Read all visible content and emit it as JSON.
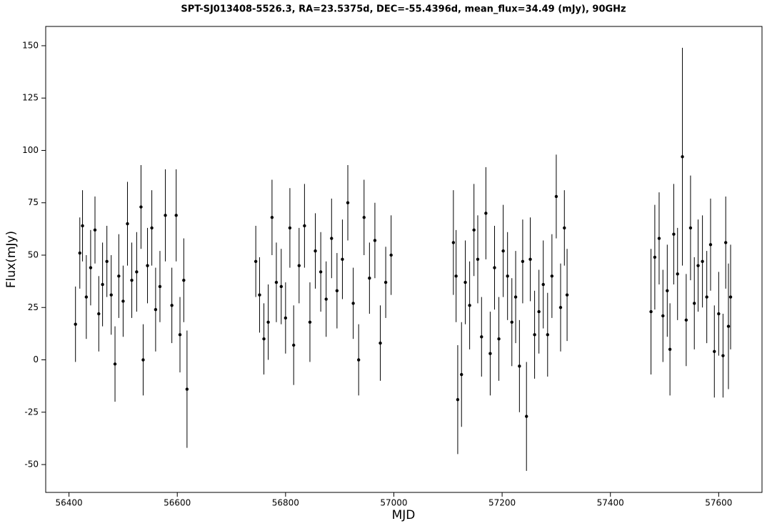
{
  "chart_data": {
    "type": "errorbar",
    "title": "SPT-SJ013408-5526.3, RA=23.5375d, DEC=-55.4396d, mean_flux=34.49 (mJy), 90GHz",
    "xlabel": "MJD",
    "ylabel": "Flux(mJy)",
    "xlim": [
      56357,
      57680
    ],
    "ylim": [
      -63.3,
      159.2
    ],
    "xticks": [
      56400,
      56600,
      56800,
      57000,
      57200,
      57400,
      57600
    ],
    "yticks": [
      -50,
      -25,
      0,
      25,
      50,
      75,
      100,
      125,
      150
    ],
    "color": "#000000",
    "x": [
      56412,
      56420,
      56425,
      56432,
      56440,
      56448,
      56455,
      56462,
      56470,
      56478,
      56485,
      56492,
      56500,
      56508,
      56516,
      56525,
      56533,
      56537,
      56545,
      56553,
      56560,
      56568,
      56578,
      56590,
      56598,
      56605,
      56612,
      56618,
      56745,
      56752,
      56760,
      56768,
      56775,
      56783,
      56792,
      56800,
      56808,
      56815,
      56825,
      56835,
      56845,
      56855,
      56865,
      56875,
      56885,
      56895,
      56905,
      56915,
      56925,
      56935,
      56945,
      56955,
      56965,
      56975,
      56985,
      56995,
      57110,
      57115,
      57118,
      57125,
      57132,
      57140,
      57148,
      57155,
      57162,
      57170,
      57178,
      57186,
      57194,
      57202,
      57210,
      57218,
      57225,
      57232,
      57238,
      57245,
      57252,
      57260,
      57268,
      57276,
      57284,
      57292,
      57300,
      57308,
      57315,
      57320,
      57475,
      57482,
      57490,
      57497,
      57505,
      57510,
      57517,
      57524,
      57533,
      57540,
      57548,
      57555,
      57562,
      57570,
      57578,
      57585,
      57592,
      57600,
      57608,
      57613,
      57618,
      57622
    ],
    "values": [
      17,
      51,
      64,
      30,
      44,
      62,
      22,
      36,
      47,
      31,
      -2,
      40,
      28,
      65,
      38,
      42,
      73,
      0,
      45,
      63,
      24,
      35,
      69,
      26,
      69,
      12,
      38,
      -14,
      47,
      31,
      10,
      18,
      68,
      37,
      35,
      20,
      63,
      7,
      45,
      64,
      18,
      52,
      42,
      29,
      58,
      33,
      48,
      75,
      27,
      0,
      68,
      39,
      57,
      8,
      37,
      50,
      56,
      40,
      -19,
      -7,
      37,
      26,
      62,
      48,
      11,
      70,
      3,
      44,
      10,
      52,
      40,
      18,
      30,
      -3,
      47,
      -27,
      48,
      12,
      23,
      36,
      12,
      40,
      78,
      25,
      63,
      31,
      23,
      49,
      58,
      21,
      33,
      5,
      60,
      41,
      97,
      19,
      63,
      27,
      45,
      47,
      30,
      55,
      4,
      22,
      2,
      56,
      16,
      30
    ],
    "errors": [
      18,
      17,
      17,
      20,
      18,
      16,
      18,
      20,
      17,
      19,
      18,
      20,
      17,
      20,
      18,
      19,
      20,
      17,
      18,
      18,
      20,
      17,
      22,
      18,
      22,
      18,
      20,
      28,
      17,
      18,
      17,
      18,
      18,
      19,
      18,
      17,
      19,
      19,
      18,
      20,
      19,
      18,
      19,
      18,
      19,
      18,
      19,
      18,
      17,
      17,
      18,
      17,
      18,
      18,
      17,
      19,
      25,
      22,
      26,
      25,
      20,
      21,
      22,
      21,
      19,
      22,
      20,
      20,
      20,
      22,
      21,
      21,
      22,
      22,
      20,
      26,
      20,
      21,
      20,
      21,
      20,
      20,
      20,
      21,
      18,
      22,
      30,
      25,
      22,
      22,
      22,
      22,
      24,
      22,
      52,
      22,
      25,
      22,
      22,
      22,
      22,
      22,
      22,
      20,
      20,
      22,
      30,
      25
    ]
  }
}
